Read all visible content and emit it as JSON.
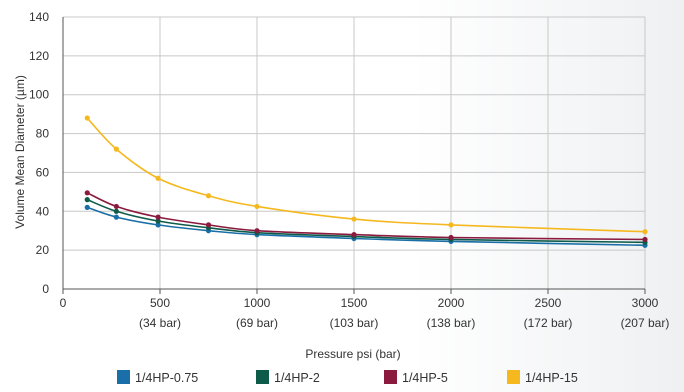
{
  "chart_data": {
    "type": "line",
    "xlabel": "Pressure psi (bar)",
    "ylabel": "Volume Mean Diameter (µm)",
    "xlim": [
      0,
      3000
    ],
    "ylim": [
      0,
      140
    ],
    "x_ticks": [
      {
        "value": 0,
        "label": "0",
        "sub": ""
      },
      {
        "value": 500,
        "label": "500",
        "sub": "(34 bar)"
      },
      {
        "value": 1000,
        "label": "1000",
        "sub": "(69 bar)"
      },
      {
        "value": 1500,
        "label": "1500",
        "sub": "(103 bar)"
      },
      {
        "value": 2000,
        "label": "2000",
        "sub": "(138 bar)"
      },
      {
        "value": 2500,
        "label": "2500",
        "sub": "(172 bar)"
      },
      {
        "value": 3000,
        "label": "3000",
        "sub": "(207 bar)"
      }
    ],
    "y_ticks": [
      {
        "value": 0,
        "label": "0"
      },
      {
        "value": 20,
        "label": "20"
      },
      {
        "value": 40,
        "label": "40"
      },
      {
        "value": 60,
        "label": "60"
      },
      {
        "value": 80,
        "label": "80"
      },
      {
        "value": 100,
        "label": "100"
      },
      {
        "value": 120,
        "label": "120"
      },
      {
        "value": 140,
        "label": "140"
      }
    ],
    "grid": true,
    "legend": "bottom",
    "series": [
      {
        "name": "1/4HP-0.75",
        "color": "#1a6fa8",
        "points": [
          [
            125,
            42
          ],
          [
            275,
            37
          ],
          [
            490,
            33
          ],
          [
            750,
            30
          ],
          [
            1000,
            28
          ],
          [
            1500,
            26
          ],
          [
            2000,
            24.5
          ],
          [
            3000,
            22.5
          ]
        ]
      },
      {
        "name": "1/4HP-2",
        "color": "#0e5b4a",
        "points": [
          [
            125,
            46
          ],
          [
            275,
            40
          ],
          [
            490,
            35
          ],
          [
            750,
            31.5
          ],
          [
            1000,
            29
          ],
          [
            1500,
            27
          ],
          [
            2000,
            25.5
          ],
          [
            3000,
            24
          ]
        ]
      },
      {
        "name": "1/4HP-5",
        "color": "#8a1a3e",
        "points": [
          [
            125,
            49.5
          ],
          [
            275,
            42.5
          ],
          [
            490,
            37
          ],
          [
            750,
            33
          ],
          [
            1000,
            30
          ],
          [
            1500,
            28
          ],
          [
            2000,
            26.5
          ],
          [
            3000,
            25.5
          ]
        ]
      },
      {
        "name": "1/4HP-15",
        "color": "#f5b81f",
        "points": [
          [
            125,
            88
          ],
          [
            275,
            72
          ],
          [
            490,
            57
          ],
          [
            750,
            48
          ],
          [
            1000,
            42.5
          ],
          [
            1500,
            36
          ],
          [
            2000,
            33
          ],
          [
            3000,
            29.5
          ]
        ]
      }
    ]
  }
}
